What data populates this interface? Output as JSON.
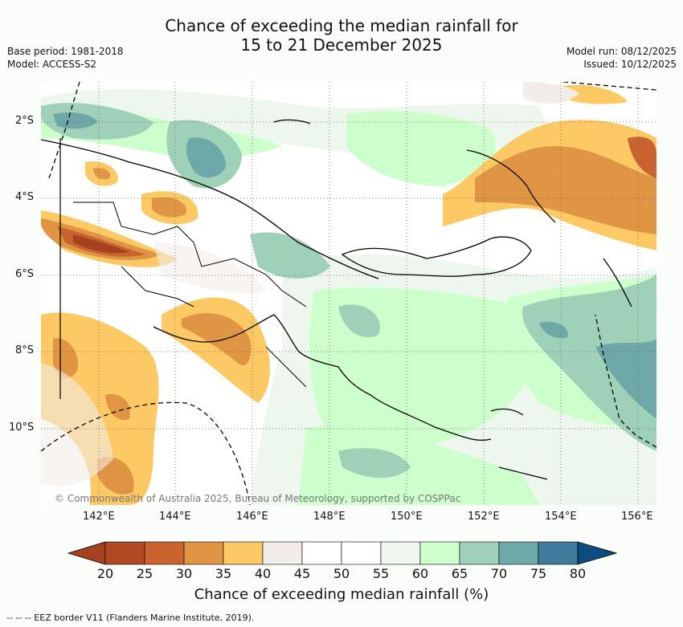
{
  "title": {
    "line1": "Chance of exceeding the median rainfall for",
    "line2": "15 to 21 December 2025"
  },
  "meta_left": {
    "base_period": "Base period: 1981-2018",
    "model": "Model: ACCESS-S2"
  },
  "meta_right": {
    "model_run": "Model run: 08/12/2025",
    "issued": "Issued: 10/12/2025"
  },
  "map": {
    "copyright": "© Commonwealth of Australia 2025, Bureau of Meteorology, supported by COSPPac",
    "lat_labels": [
      "2°S",
      "4°S",
      "6°S",
      "8°S",
      "10°S"
    ],
    "lon_labels": [
      "142°E",
      "144°E",
      "146°E",
      "148°E",
      "150°E",
      "152°E",
      "154°E",
      "156°E"
    ]
  },
  "colorbar": {
    "title": "Chance of exceeding median rainfall (%)",
    "ticks": [
      "20",
      "25",
      "30",
      "35",
      "40",
      "45",
      "50",
      "55",
      "60",
      "65",
      "70",
      "75",
      "80"
    ],
    "colors": [
      "#a8411f",
      "#b14a22",
      "#c96431",
      "#e09545",
      "#fdc964",
      "#f2ede8",
      "#ffffff",
      "#ffffff",
      "#edf7ed",
      "#ccffcc",
      "#9fd1b9",
      "#6ea8a8",
      "#3f7c9c",
      "#0d4c80"
    ]
  },
  "legend": {
    "eez_text": "--  --  -- EEZ border V11 (Flanders Marine Institute, 2019)."
  }
}
